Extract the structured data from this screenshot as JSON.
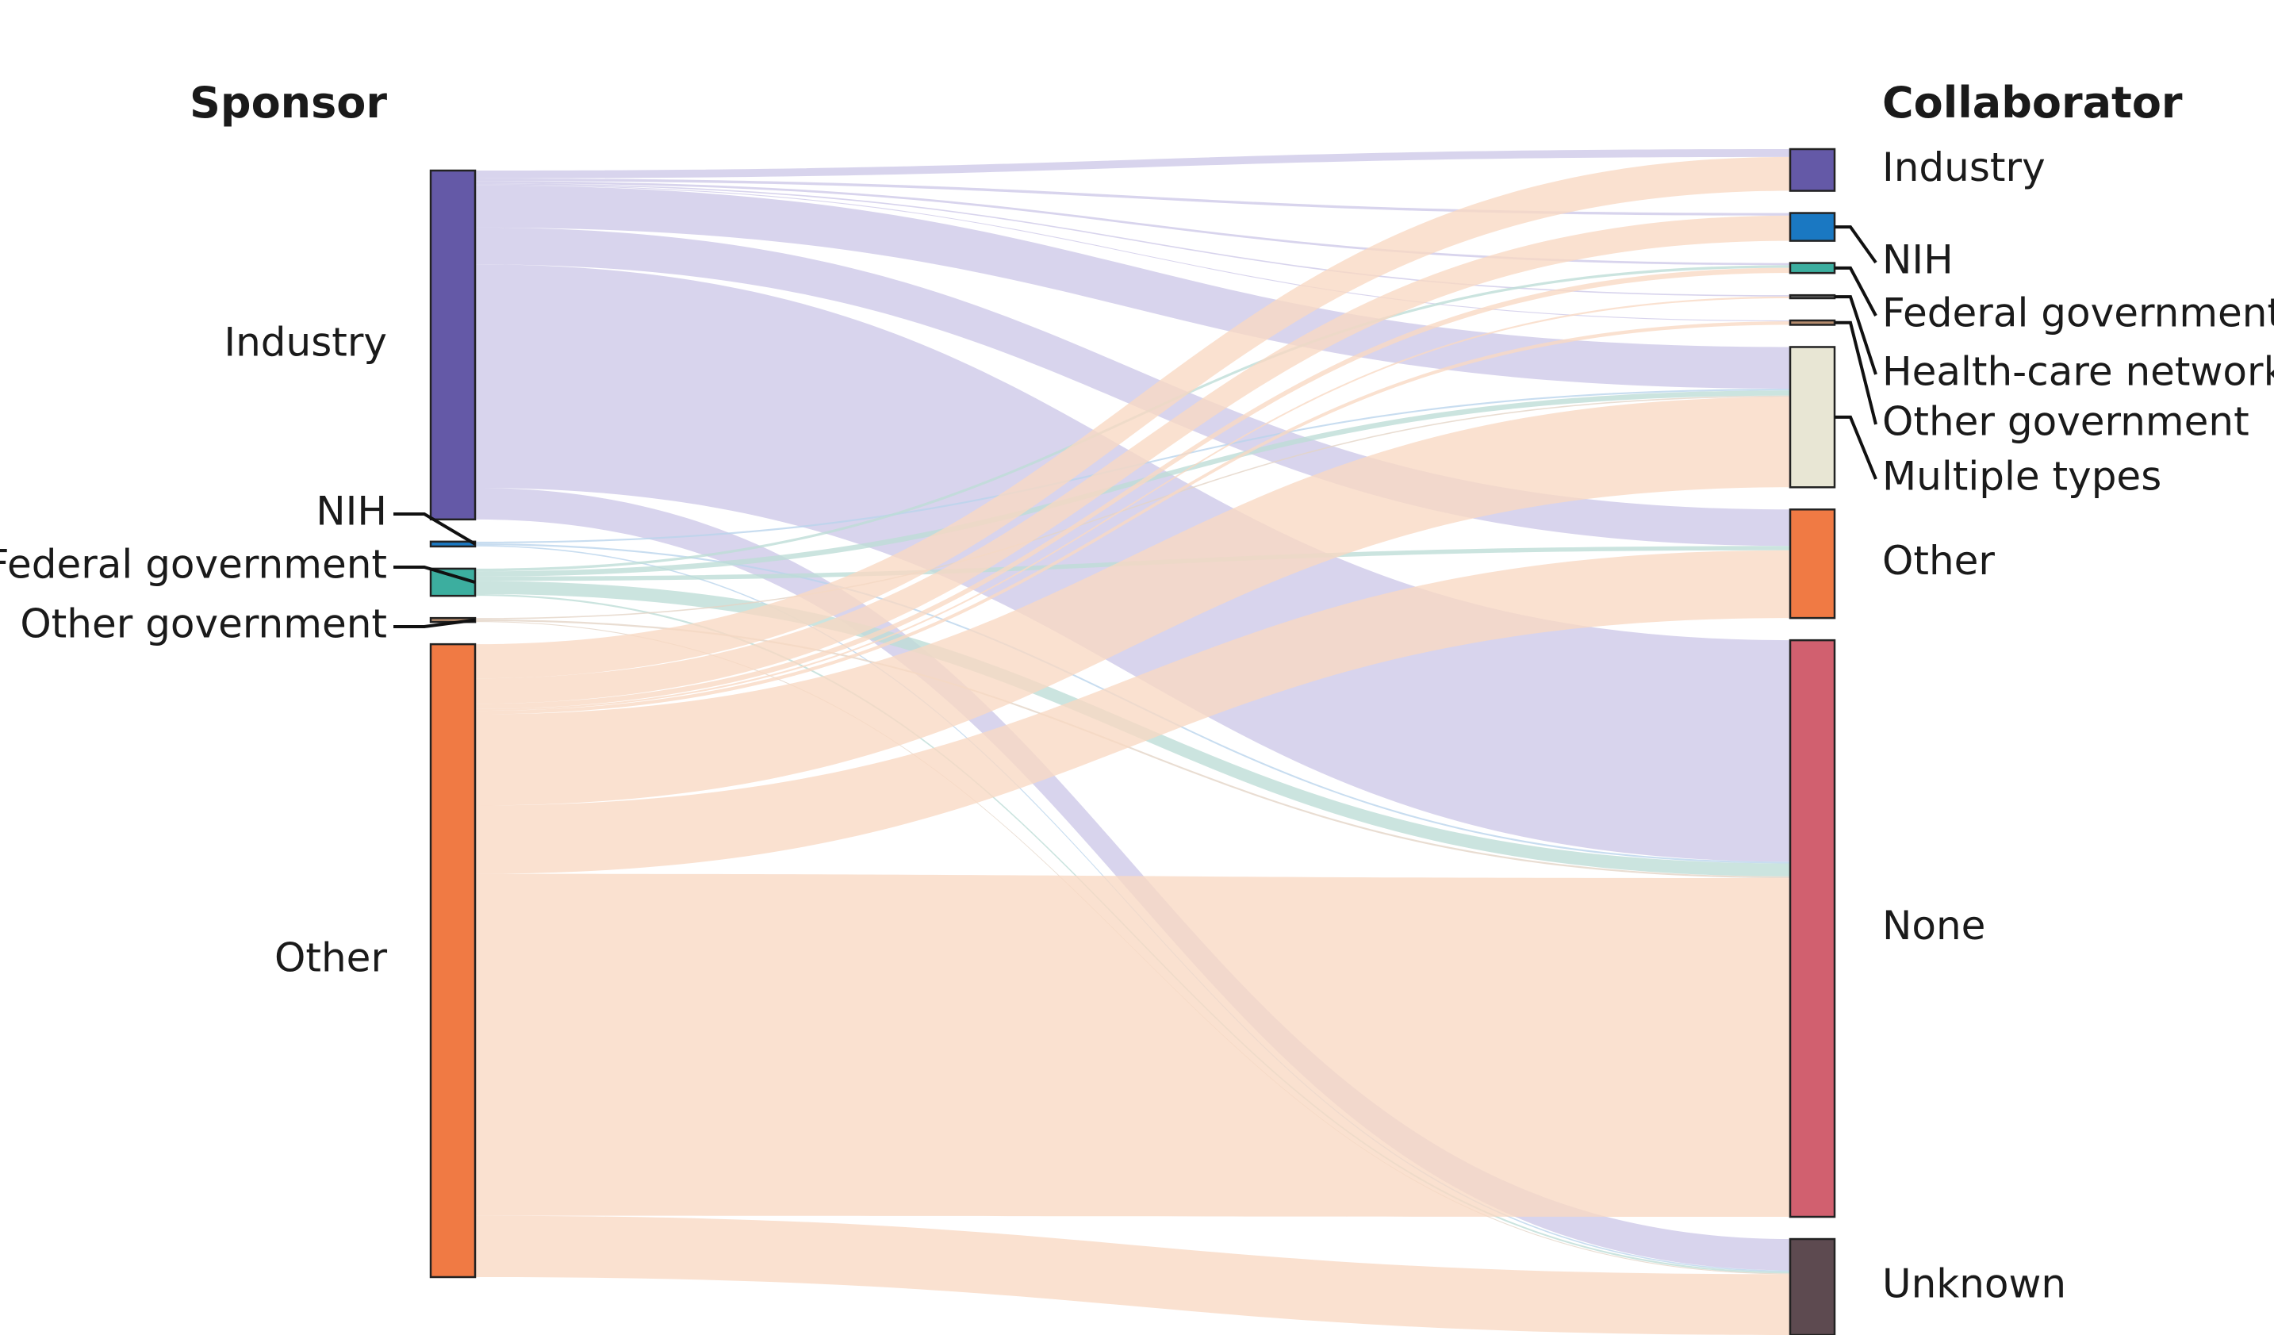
{
  "headers": {
    "sponsor": "Sponsor",
    "collaborator": "Collaborator"
  },
  "sponsors": [
    {
      "id": "industry",
      "label": "Industry",
      "color": "#6459a7"
    },
    {
      "id": "nih",
      "label": "NIH",
      "color": "#1a78c2"
    },
    {
      "id": "federal",
      "label": "Federal government",
      "color": "#3cae9f"
    },
    {
      "id": "othergov",
      "label": "Other government",
      "color": "#b58b6c"
    },
    {
      "id": "other",
      "label": "Other",
      "color": "#f07a44"
    }
  ],
  "collaborators": [
    {
      "id": "industry",
      "label": "Industry",
      "color": "#6459a7"
    },
    {
      "id": "nih",
      "label": "NIH",
      "color": "#1a78c2"
    },
    {
      "id": "federal",
      "label": "Federal government",
      "color": "#3cae9f"
    },
    {
      "id": "hcn",
      "label": "Health-care network",
      "color": "#6b6b6b"
    },
    {
      "id": "othergov",
      "label": "Other government",
      "color": "#b58b6c"
    },
    {
      "id": "multiple",
      "label": "Multiple types",
      "color": "#e8e6d4"
    },
    {
      "id": "other",
      "label": "Other",
      "color": "#f07a44"
    },
    {
      "id": "none",
      "label": "None",
      "color": "#d1606f"
    },
    {
      "id": "unknown",
      "label": "Unknown",
      "color": "#5d4a50"
    }
  ],
  "flow_colors": {
    "industry": "#cdc8e8",
    "nih": "#b9d4ec",
    "federal": "#bcdcd6",
    "othergov": "#e3d3c5",
    "other": "#f8d9c3"
  },
  "chart_data": {
    "type": "sankey",
    "unit": "relative share",
    "links": [
      {
        "source": "industry",
        "target": "industry",
        "value": 0.9
      },
      {
        "source": "industry",
        "target": "nih",
        "value": 0.3
      },
      {
        "source": "industry",
        "target": "federal",
        "value": 0.25
      },
      {
        "source": "industry",
        "target": "hcn",
        "value": 0.15
      },
      {
        "source": "industry",
        "target": "othergov",
        "value": 0.1
      },
      {
        "source": "industry",
        "target": "multiple",
        "value": 4.8
      },
      {
        "source": "industry",
        "target": "other",
        "value": 4.2
      },
      {
        "source": "industry",
        "target": "none",
        "value": 25.5
      },
      {
        "source": "industry",
        "target": "unknown",
        "value": 3.6
      },
      {
        "source": "nih",
        "target": "multiple",
        "value": 0.2
      },
      {
        "source": "nih",
        "target": "none",
        "value": 0.2
      },
      {
        "source": "nih",
        "target": "unknown",
        "value": 0.15
      },
      {
        "source": "federal",
        "target": "federal",
        "value": 0.3
      },
      {
        "source": "federal",
        "target": "multiple",
        "value": 0.6
      },
      {
        "source": "federal",
        "target": "other",
        "value": 0.5
      },
      {
        "source": "federal",
        "target": "none",
        "value": 1.5
      },
      {
        "source": "federal",
        "target": "unknown",
        "value": 0.2
      },
      {
        "source": "othergov",
        "target": "multiple",
        "value": 0.15
      },
      {
        "source": "othergov",
        "target": "none",
        "value": 0.2
      },
      {
        "source": "othergov",
        "target": "unknown",
        "value": 0.1
      },
      {
        "source": "other",
        "target": "industry",
        "value": 3.9
      },
      {
        "source": "other",
        "target": "nih",
        "value": 2.9
      },
      {
        "source": "other",
        "target": "federal",
        "value": 0.6
      },
      {
        "source": "other",
        "target": "hcn",
        "value": 0.2
      },
      {
        "source": "other",
        "target": "othergov",
        "value": 0.4
      },
      {
        "source": "other",
        "target": "multiple",
        "value": 10.4
      },
      {
        "source": "other",
        "target": "other",
        "value": 7.8
      },
      {
        "source": "other",
        "target": "none",
        "value": 39.0
      },
      {
        "source": "other",
        "target": "unknown",
        "value": 7.0
      }
    ]
  }
}
